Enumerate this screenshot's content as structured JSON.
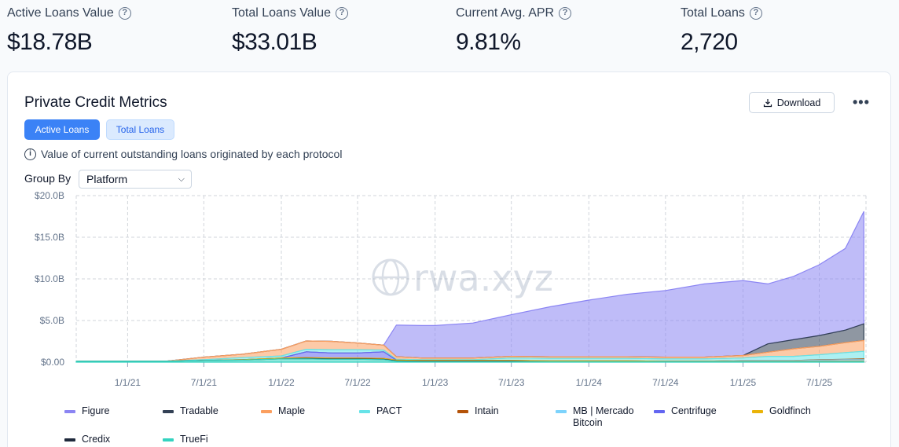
{
  "stats": [
    {
      "label": "Active Loans Value",
      "value": "$18.78B"
    },
    {
      "label": "Total Loans Value",
      "value": "$33.01B"
    },
    {
      "label": "Current Avg. APR",
      "value": "9.81%"
    },
    {
      "label": "Total Loans",
      "value": "2,720"
    }
  ],
  "icons": {
    "help": "help-circle-icon",
    "info": "info-circle-icon",
    "download": "download-icon",
    "more": "more-horizontal-icon",
    "chevron": "chevron-down-icon"
  },
  "card": {
    "title": "Private Credit Metrics",
    "download_label": "Download",
    "more_label": "•••",
    "tabs": [
      "Active Loans",
      "Total Loans"
    ],
    "active_tab": "Active Loans",
    "info_text": "Value of current outstanding loans originated by each protocol",
    "group_by_label": "Group By",
    "group_by_value": "Platform",
    "watermark": "rwa.xyz"
  },
  "chart_data": {
    "type": "area",
    "stacked": true,
    "title": "",
    "xlabel": "",
    "ylabel": "",
    "ylim": [
      0,
      20
    ],
    "yticks": [
      "$0.00",
      "$5.0B",
      "$10.0B",
      "$15.0B",
      "$20.0B"
    ],
    "xticks": [
      "1/1/21",
      "7/1/21",
      "1/1/22",
      "7/1/22",
      "1/1/23",
      "7/1/23",
      "1/1/24",
      "7/1/24",
      "1/1/25",
      "7/1/25"
    ],
    "xlim": [
      "2020-09-01",
      "2025-10-20"
    ],
    "grid": true,
    "legend_position": "bottom",
    "x": [
      "2020-09-01",
      "2021-01-01",
      "2021-04-01",
      "2021-07-01",
      "2021-10-01",
      "2022-01-01",
      "2022-03-01",
      "2022-05-01",
      "2022-07-01",
      "2022-09-01",
      "2022-10-01",
      "2022-12-01",
      "2023-01-01",
      "2023-04-01",
      "2023-07-01",
      "2023-10-01",
      "2024-01-01",
      "2024-04-01",
      "2024-07-01",
      "2024-10-01",
      "2025-01-01",
      "2025-03-01",
      "2025-05-01",
      "2025-07-01",
      "2025-09-01",
      "2025-10-15"
    ],
    "series": [
      {
        "name": "Figure",
        "color": "#8b85f3",
        "values": [
          0,
          0,
          0,
          0,
          0,
          0,
          0,
          0,
          0,
          0,
          3.8,
          3.9,
          3.9,
          4.2,
          5.0,
          6.0,
          6.8,
          7.5,
          8.0,
          8.8,
          9.0,
          7.2,
          7.6,
          8.5,
          9.8,
          13.5
        ]
      },
      {
        "name": "Tradable",
        "color": "#334155",
        "values": [
          0,
          0,
          0,
          0,
          0,
          0,
          0,
          0,
          0,
          0,
          0,
          0,
          0,
          0,
          0,
          0,
          0,
          0,
          0,
          0,
          0,
          1.0,
          1.1,
          1.3,
          1.5,
          2.0
        ]
      },
      {
        "name": "Maple",
        "color": "#fb9f5f",
        "values": [
          0,
          0,
          0,
          0.3,
          0.4,
          0.8,
          1.0,
          1.0,
          0.8,
          0.6,
          0.3,
          0.2,
          0.2,
          0.2,
          0.2,
          0.2,
          0.2,
          0.2,
          0.2,
          0.2,
          0.3,
          0.5,
          0.9,
          1.0,
          1.2,
          1.3
        ]
      },
      {
        "name": "PACT",
        "color": "#67e3e8",
        "values": [
          0,
          0,
          0,
          0.1,
          0.25,
          0.25,
          0.3,
          0.4,
          0.4,
          0.2,
          0.1,
          0.1,
          0.1,
          0.1,
          0.3,
          0.3,
          0.3,
          0.3,
          0.3,
          0.3,
          0.3,
          0.5,
          0.5,
          0.6,
          0.8,
          0.9
        ]
      },
      {
        "name": "Intain",
        "color": "#b45309",
        "values": [
          0,
          0,
          0,
          0,
          0,
          0,
          0,
          0,
          0,
          0,
          0,
          0,
          0,
          0,
          0,
          0,
          0,
          0,
          0,
          0,
          0,
          0,
          0,
          0.05,
          0.05,
          0.1
        ]
      },
      {
        "name": "MB | Mercado Bitcoin",
        "color": "#7dd3fc",
        "values": [
          0,
          0,
          0,
          0,
          0,
          0,
          0,
          0,
          0,
          0,
          0,
          0,
          0,
          0,
          0,
          0,
          0,
          0,
          0,
          0,
          0.1,
          0.1,
          0.1,
          0.15,
          0.2,
          0.2
        ]
      },
      {
        "name": "Centrifuge",
        "color": "#6366f1",
        "values": [
          0,
          0,
          0,
          0,
          0,
          0,
          0.7,
          0.6,
          0.6,
          0.8,
          0,
          0,
          0,
          0,
          0,
          0,
          0,
          0,
          0,
          0,
          0,
          0,
          0,
          0,
          0,
          0
        ]
      },
      {
        "name": "Goldfinch",
        "color": "#eab308",
        "values": [
          0,
          0,
          0,
          0,
          0.05,
          0.1,
          0.1,
          0.1,
          0.1,
          0.1,
          0.1,
          0.1,
          0.1,
          0.1,
          0.1,
          0.1,
          0.1,
          0.1,
          0.05,
          0.05,
          0.05,
          0.05,
          0.05,
          0.05,
          0.05,
          0.05
        ]
      },
      {
        "name": "Credix",
        "color": "#1e293b",
        "values": [
          0,
          0,
          0,
          0,
          0,
          0,
          0.05,
          0.05,
          0.05,
          0.05,
          0.05,
          0.05,
          0.05,
          0.05,
          0.05,
          0,
          0,
          0,
          0,
          0,
          0,
          0,
          0,
          0,
          0,
          0
        ]
      },
      {
        "name": "TrueFi",
        "color": "#34d3c0",
        "values": [
          0.1,
          0.1,
          0.1,
          0.2,
          0.25,
          0.4,
          0.4,
          0.35,
          0.35,
          0.3,
          0.1,
          0.05,
          0.05,
          0.05,
          0.05,
          0.05,
          0.05,
          0.05,
          0.05,
          0.05,
          0.05,
          0.05,
          0.05,
          0.05,
          0.05,
          0.05
        ]
      }
    ]
  }
}
